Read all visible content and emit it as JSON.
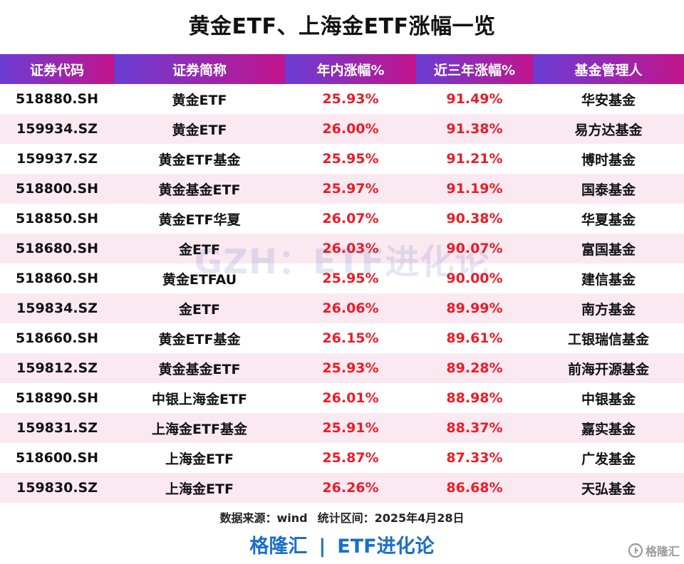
{
  "title": "黄金ETF、上海金ETF涨幅一览",
  "colors": {
    "header_gradient_from": "#6a3dd4",
    "header_gradient_to": "#c2148c",
    "positive": "#ee1b24",
    "stripe": "#fbe9f2",
    "brand": "#1a6fc8"
  },
  "table": {
    "headers": [
      "证券代码",
      "证券简称",
      "年内涨幅%",
      "近三年涨幅%",
      "基金管理人"
    ],
    "rows": [
      [
        "518880.SH",
        "黄金ETF",
        "25.93%",
        "91.49%",
        "华安基金"
      ],
      [
        "159934.SZ",
        "黄金ETF",
        "26.00%",
        "91.38%",
        "易方达基金"
      ],
      [
        "159937.SZ",
        "黄金ETF基金",
        "25.95%",
        "91.21%",
        "博时基金"
      ],
      [
        "518800.SH",
        "黄金基金ETF",
        "25.97%",
        "91.19%",
        "国泰基金"
      ],
      [
        "518850.SH",
        "黄金ETF华夏",
        "26.07%",
        "90.38%",
        "华夏基金"
      ],
      [
        "518680.SH",
        "金ETF",
        "26.03%",
        "90.07%",
        "富国基金"
      ],
      [
        "518860.SH",
        "黄金ETFAU",
        "25.95%",
        "90.00%",
        "建信基金"
      ],
      [
        "159834.SZ",
        "金ETF",
        "26.06%",
        "89.99%",
        "南方基金"
      ],
      [
        "518660.SH",
        "黄金ETF基金",
        "26.15%",
        "89.61%",
        "工银瑞信基金"
      ],
      [
        "159812.SZ",
        "黄金基金ETF",
        "25.93%",
        "89.28%",
        "前海开源基金"
      ],
      [
        "518890.SH",
        "中银上海金ETF",
        "26.01%",
        "88.98%",
        "中银基金"
      ],
      [
        "159831.SZ",
        "上海金ETF基金",
        "25.91%",
        "88.37%",
        "嘉实基金"
      ],
      [
        "518600.SH",
        "上海金ETF",
        "25.87%",
        "87.33%",
        "广发基金"
      ],
      [
        "159830.SZ",
        "上海金ETF",
        "26.26%",
        "86.68%",
        "天弘基金"
      ]
    ]
  },
  "watermark": "GZH：ETF进化论",
  "footnote": {
    "source": "数据来源：wind",
    "period": "统计区间：2025年4月28日"
  },
  "brand": {
    "left": "格隆汇",
    "separator": "|",
    "right": "ETF进化论"
  },
  "corner_logo": {
    "icon": "gelonghui-logo-icon",
    "text": "格隆汇"
  }
}
